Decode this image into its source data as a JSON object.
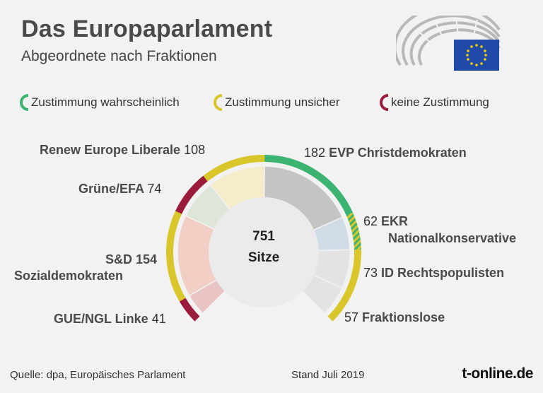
{
  "title": "Das Europaparlament",
  "subtitle": "Abgeordnete nach Fraktionen",
  "legend": {
    "likely": "Zustimmung wahrscheinlich",
    "unsure": "Zustimmung unsicher",
    "no": "keine Zustimmung"
  },
  "colors": {
    "likely": "#3cb371",
    "unsure": "#d9c62b",
    "no": "#9b1b3b"
  },
  "center": {
    "number": "751",
    "label": "Sitze"
  },
  "footer": {
    "source": "Quelle: dpa, Europäisches Parlament",
    "date": "Stand Juli 2019",
    "brand": "t-online.de"
  },
  "chart_data": {
    "type": "pie",
    "total": 751,
    "categories": [
      "GUE/NGL Linke",
      "S&D Sozialdemokraten",
      "Grüne/EFA",
      "Renew Europe Liberale",
      "EVP Christdemokraten",
      "EKR Nationalkonservative",
      "ID Rechtspopulisten",
      "Fraktionslose"
    ],
    "values": [
      41,
      154,
      74,
      108,
      182,
      62,
      73,
      57
    ],
    "approval": [
      "no",
      "unsure",
      "no",
      "unsure",
      "likely",
      "likely/unsure",
      "unsure",
      "unsure"
    ],
    "fill_colors": [
      "#e8c4c4",
      "#f2cfc4",
      "#dde6d9",
      "#f5ecca",
      "#c4c4c4",
      "#cfdce8",
      "#e3e3e3",
      "#e3e3e3"
    ]
  },
  "labels": {
    "guengl": {
      "name": "GUE/NGL Linke",
      "num": "41"
    },
    "sd": {
      "num": "S&D 154",
      "name": "Sozialdemokraten"
    },
    "gruene": {
      "name": "Grüne/EFA",
      "num": "74"
    },
    "renew": {
      "name": "Renew Europe Liberale",
      "num": "108"
    },
    "evp": {
      "num": "182",
      "name": "EVP Christdemokraten"
    },
    "ekr": {
      "num": "62",
      "name1": "EKR",
      "name2": "Nationalkonservative"
    },
    "id": {
      "num": "73",
      "name": "ID  Rechtspopulisten"
    },
    "fraktionslose": {
      "num": "57",
      "name": "Fraktionslose"
    }
  }
}
